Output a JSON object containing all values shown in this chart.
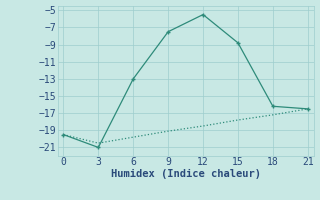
{
  "line1_x": [
    0,
    3,
    6,
    9,
    12,
    15,
    18,
    21
  ],
  "line1_y": [
    -19.5,
    -21,
    -13,
    -7.5,
    -5.5,
    -8.8,
    -16.2,
    -16.5
  ],
  "line2_x": [
    0,
    3,
    6,
    9,
    12,
    15,
    18,
    21
  ],
  "line2_y": [
    -19.5,
    -20.5,
    -19.8,
    -19.1,
    -18.5,
    -17.8,
    -17.2,
    -16.5
  ],
  "line_color": "#2e8b7a",
  "bg_color": "#c8e8e4",
  "grid_color": "#9ecece",
  "xlabel": "Humidex (Indice chaleur)",
  "xlim": [
    -0.5,
    21.5
  ],
  "ylim": [
    -22,
    -4.5
  ],
  "xticks": [
    0,
    3,
    6,
    9,
    12,
    15,
    18,
    21
  ],
  "yticks": [
    -5,
    -7,
    -9,
    -11,
    -13,
    -15,
    -17,
    -19,
    -21
  ],
  "font_color": "#2a4a7a",
  "tick_fontsize": 7,
  "xlabel_fontsize": 7.5,
  "linewidth": 0.9,
  "markersize": 3.5,
  "marker": "+"
}
